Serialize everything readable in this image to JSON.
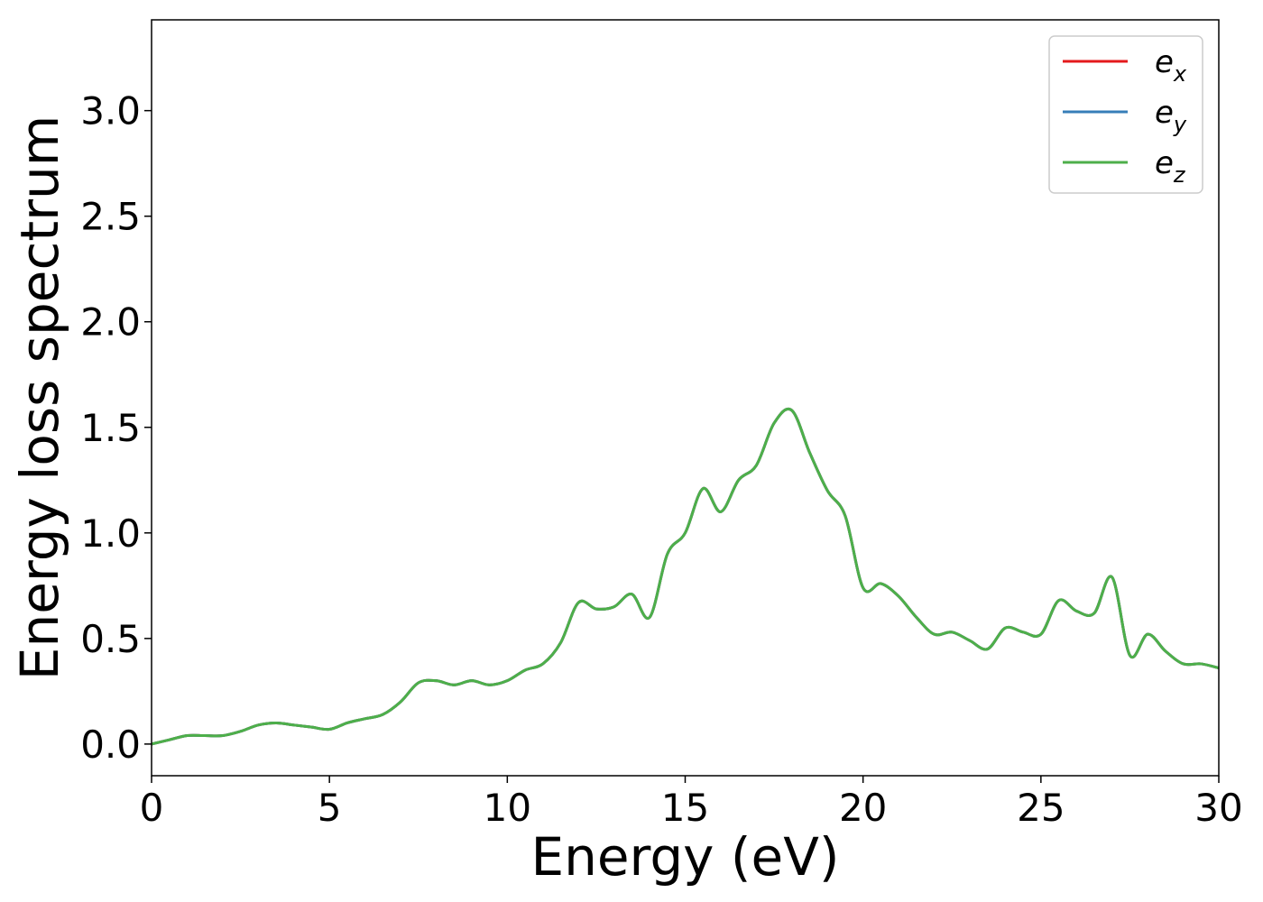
{
  "chart_data": {
    "type": "line",
    "xlabel": "Energy (eV)",
    "ylabel": "Energy loss spectrum",
    "xlim": [
      0,
      30
    ],
    "ylim": [
      -0.15,
      3.43
    ],
    "xticks": [
      0,
      5,
      10,
      15,
      20,
      25,
      30
    ],
    "xtick_labels": [
      "0",
      "5",
      "10",
      "15",
      "20",
      "25",
      "30"
    ],
    "yticks": [
      0.0,
      0.5,
      1.0,
      1.5,
      2.0,
      2.5,
      3.0
    ],
    "ytick_labels": [
      "0.0",
      "0.5",
      "1.0",
      "1.5",
      "2.0",
      "2.5",
      "3.0"
    ],
    "grid": false,
    "legend_position": "top-right",
    "x": [
      0,
      0.5,
      1.0,
      1.5,
      2.0,
      2.5,
      3.0,
      3.5,
      4.0,
      4.5,
      5.0,
      5.5,
      6.0,
      6.5,
      7.0,
      7.5,
      8.0,
      8.5,
      9.0,
      9.5,
      10.0,
      10.5,
      11.0,
      11.5,
      12.0,
      12.5,
      13.0,
      13.5,
      14.0,
      14.5,
      15.0,
      15.5,
      16.0,
      16.5,
      17.0,
      17.5,
      18.0,
      18.5,
      19.0,
      19.5,
      20.0,
      20.5,
      21.0,
      21.5,
      22.0,
      22.5,
      23.0,
      23.5,
      24.0,
      24.5,
      25.0,
      25.5,
      26.0,
      26.5,
      27.0,
      27.5,
      28.0,
      28.5,
      29.0,
      29.5,
      30.0
    ],
    "series": [
      {
        "name": "e_x",
        "color": "#e41a1c",
        "values": [
          0.0,
          0.02,
          0.04,
          0.04,
          0.04,
          0.06,
          0.09,
          0.1,
          0.09,
          0.08,
          0.07,
          0.1,
          0.12,
          0.14,
          0.2,
          0.29,
          0.3,
          0.28,
          0.3,
          0.28,
          0.3,
          0.35,
          0.38,
          0.48,
          0.67,
          0.64,
          0.65,
          0.71,
          0.6,
          0.9,
          1.0,
          1.21,
          1.1,
          1.25,
          1.32,
          1.52,
          1.58,
          1.38,
          1.2,
          1.08,
          0.74,
          0.76,
          0.7,
          0.6,
          0.52,
          0.53,
          0.49,
          0.45,
          0.55,
          0.53,
          0.52,
          0.68,
          0.63,
          0.62,
          0.79,
          0.42,
          0.52,
          0.44,
          0.38,
          0.38,
          0.36
        ]
      },
      {
        "name": "e_y",
        "color": "#377eb8",
        "values": [
          0.0,
          0.02,
          0.04,
          0.04,
          0.04,
          0.06,
          0.09,
          0.1,
          0.09,
          0.08,
          0.07,
          0.1,
          0.12,
          0.14,
          0.2,
          0.29,
          0.3,
          0.28,
          0.3,
          0.28,
          0.3,
          0.35,
          0.38,
          0.48,
          0.67,
          0.64,
          0.65,
          0.71,
          0.6,
          0.9,
          1.0,
          1.21,
          1.1,
          1.25,
          1.32,
          1.52,
          1.58,
          1.38,
          1.2,
          1.08,
          0.74,
          0.76,
          0.7,
          0.6,
          0.52,
          0.53,
          0.49,
          0.45,
          0.55,
          0.53,
          0.52,
          0.68,
          0.63,
          0.62,
          0.79,
          0.42,
          0.52,
          0.44,
          0.38,
          0.38,
          0.36
        ]
      },
      {
        "name": "e_z",
        "color": "#4daf4a",
        "values": [
          0.0,
          0.02,
          0.04,
          0.04,
          0.04,
          0.06,
          0.09,
          0.1,
          0.09,
          0.08,
          0.07,
          0.1,
          0.12,
          0.14,
          0.2,
          0.29,
          0.3,
          0.28,
          0.3,
          0.28,
          0.3,
          0.35,
          0.38,
          0.48,
          0.67,
          0.64,
          0.65,
          0.71,
          0.6,
          0.9,
          1.0,
          1.21,
          1.1,
          1.25,
          1.32,
          1.52,
          1.58,
          1.38,
          1.2,
          1.08,
          0.74,
          0.76,
          0.7,
          0.6,
          0.52,
          0.53,
          0.49,
          0.45,
          0.55,
          0.53,
          0.52,
          0.68,
          0.63,
          0.62,
          0.79,
          0.42,
          0.52,
          0.44,
          0.38,
          0.38,
          0.36
        ]
      }
    ],
    "legend": [
      {
        "base": "e",
        "sub": "x"
      },
      {
        "base": "e",
        "sub": "y"
      },
      {
        "base": "e",
        "sub": "z"
      }
    ]
  }
}
